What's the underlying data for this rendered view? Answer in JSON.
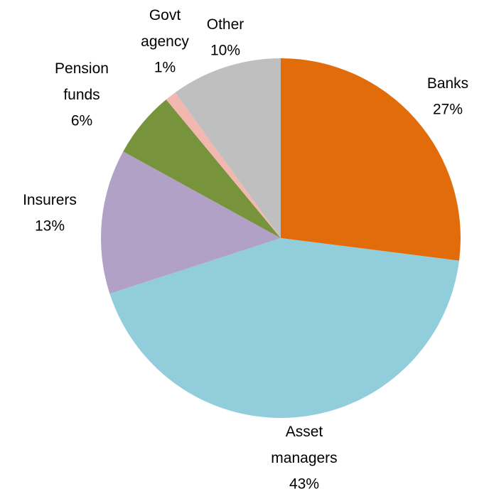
{
  "chart_data": {
    "type": "pie",
    "categories": [
      "Banks",
      "Asset managers",
      "Insurers",
      "Pension funds",
      "Govt agency",
      "Other"
    ],
    "values": [
      27,
      43,
      13,
      6,
      1,
      10
    ],
    "value_labels": [
      "27%",
      "43%",
      "13%",
      "6%",
      "1%",
      "10%"
    ],
    "colors": [
      "#e36c0a",
      "#92cddc",
      "#b2a1c7",
      "#77933c",
      "#f2b8b0",
      "#bfbfbf"
    ]
  }
}
